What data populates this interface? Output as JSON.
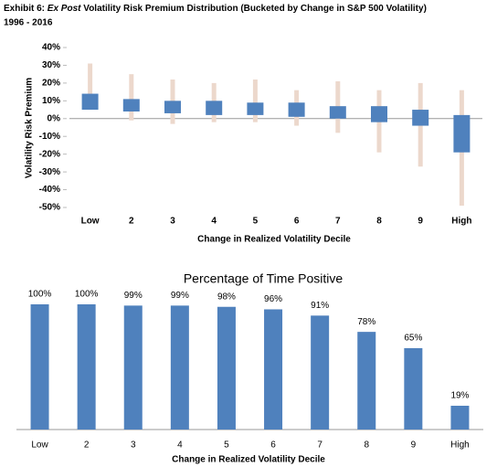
{
  "chart_data": [
    {
      "type": "box",
      "title": {
        "prefix": "Exhibit 6:",
        "italic": "Ex Post",
        "rest": "Volatility Risk Premium Distribution (Bucketed by Change in S&P 500 Volatility)"
      },
      "subtitle": "1996 - 2016",
      "y_label": "Volatility Risk Premium",
      "x_label": "Change in Realized Volatility Decile",
      "categories": [
        "Low",
        "2",
        "3",
        "4",
        "5",
        "6",
        "7",
        "8",
        "9",
        "High"
      ],
      "whisker_low": [
        5,
        -1,
        -3,
        -2,
        -2,
        -4,
        -8,
        -19,
        -27,
        -49
      ],
      "box_low": [
        5,
        4,
        3,
        2,
        2,
        1,
        0,
        -2,
        -4,
        -19
      ],
      "box_high": [
        14,
        11,
        10,
        10,
        9,
        9,
        7,
        7,
        5,
        2
      ],
      "whisker_high": [
        31,
        25,
        22,
        20,
        22,
        16,
        21,
        16,
        20,
        16
      ],
      "box_color": "#4f81bd",
      "whisker_color": "#ecd8cc",
      "ylim": [
        -50,
        40
      ],
      "yticks": [
        {
          "value": 40,
          "label": "40%"
        },
        {
          "value": 30,
          "label": "30%"
        },
        {
          "value": 20,
          "label": "20%"
        },
        {
          "value": 10,
          "label": "10%"
        },
        {
          "value": 0,
          "label": "0%"
        },
        {
          "value": -10,
          "label": "-10%"
        },
        {
          "value": -20,
          "label": "-20%"
        },
        {
          "value": -30,
          "label": "-30%"
        },
        {
          "value": -40,
          "label": "-40%"
        },
        {
          "value": -50,
          "label": "-50%"
        }
      ]
    },
    {
      "type": "bar",
      "title": "Percentage of Time Positive",
      "x_label": "Change in Realized Volatility Decile",
      "categories": [
        "Low",
        "2",
        "3",
        "4",
        "5",
        "6",
        "7",
        "8",
        "9",
        "High"
      ],
      "values": [
        100,
        100,
        99,
        99,
        98,
        96,
        91,
        78,
        65,
        19
      ],
      "value_labels": [
        "100%",
        "100%",
        "99%",
        "99%",
        "98%",
        "96%",
        "91%",
        "78%",
        "65%",
        "19%"
      ],
      "color": "#4f81bd"
    }
  ]
}
